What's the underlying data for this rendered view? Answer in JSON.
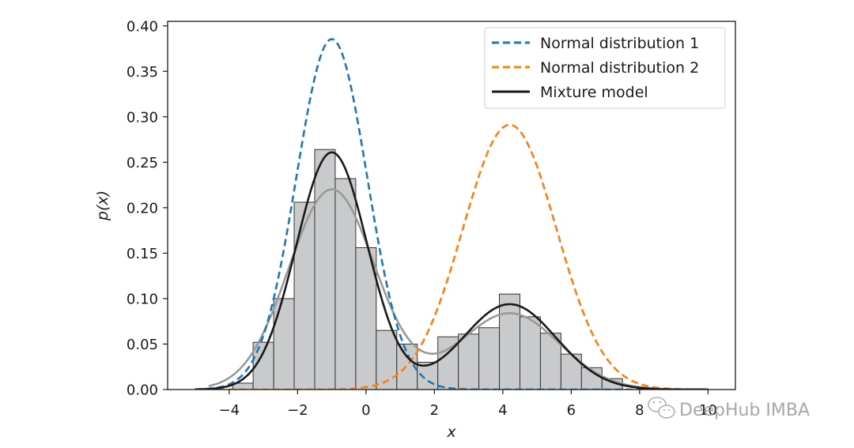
{
  "chart_data": {
    "type": "histogram+line",
    "xlabel": "x",
    "ylabel": "p(x)",
    "xlim": [
      -5.8,
      10.8
    ],
    "ylim": [
      0,
      0.405
    ],
    "xticks": [
      -4,
      -2,
      0,
      2,
      4,
      6,
      8,
      10
    ],
    "xtick_labels": [
      "−4",
      "−2",
      "0",
      "2",
      "4",
      "6",
      "8",
      "10"
    ],
    "yticks": [
      0,
      0.05,
      0.1,
      0.15,
      0.2,
      0.25,
      0.3,
      0.35,
      0.4
    ],
    "ytick_labels": [
      "0.00",
      "0.05",
      "0.10",
      "0.15",
      "0.20",
      "0.25",
      "0.30",
      "0.35",
      "0.40"
    ],
    "histogram": {
      "bin_edges": [
        -3.9,
        -3.3,
        -2.7,
        -2.1,
        -1.5,
        -0.9,
        -0.3,
        0.3,
        0.9,
        1.5,
        2.1,
        2.7,
        3.3,
        3.9,
        4.5,
        5.1,
        5.7,
        6.3,
        6.9,
        7.5
      ],
      "counts": [
        0.007,
        0.052,
        0.1,
        0.206,
        0.264,
        0.232,
        0.156,
        0.065,
        0.05,
        0.03,
        0.058,
        0.061,
        0.068,
        0.105,
        0.08,
        0.062,
        0.039,
        0.024,
        0.012
      ],
      "color": "#c8cacc",
      "edgecolor": "#333333"
    },
    "series": [
      {
        "name": "Normal distribution 1",
        "kind": "normal",
        "mu": -1.0,
        "sigma": 1.035,
        "x_range": [
          -5.0,
          10.0
        ],
        "color": "#1f77b4",
        "dashed": true
      },
      {
        "name": "Normal distribution 2",
        "kind": "normal",
        "mu": 4.2,
        "sigma": 1.37,
        "x_range": [
          -5.0,
          10.0
        ],
        "color": "#ff7f0e",
        "dashed": true
      },
      {
        "name": "Mixture model",
        "kind": "mixture",
        "components": [
          {
            "w": 0.68,
            "mu": -1.0,
            "sigma": 1.04
          },
          {
            "w": 0.32,
            "mu": 4.2,
            "sigma": 1.36
          }
        ],
        "x_range": [
          -5.0,
          10.0
        ],
        "color": "#1a1a1a",
        "dashed": false
      },
      {
        "name": "",
        "kind": "mixture",
        "components": [
          {
            "w": 0.695,
            "mu": -1.0,
            "sigma": 1.26
          },
          {
            "w": 0.305,
            "mu": 4.2,
            "sigma": 1.45
          }
        ],
        "x_range": [
          -4.6,
          8.5
        ],
        "color": "#999999",
        "dashed": false
      }
    ],
    "legend_position": "top-right"
  },
  "watermark": {
    "text": "DeepHub IMBA",
    "icon": "wechat-icon"
  }
}
